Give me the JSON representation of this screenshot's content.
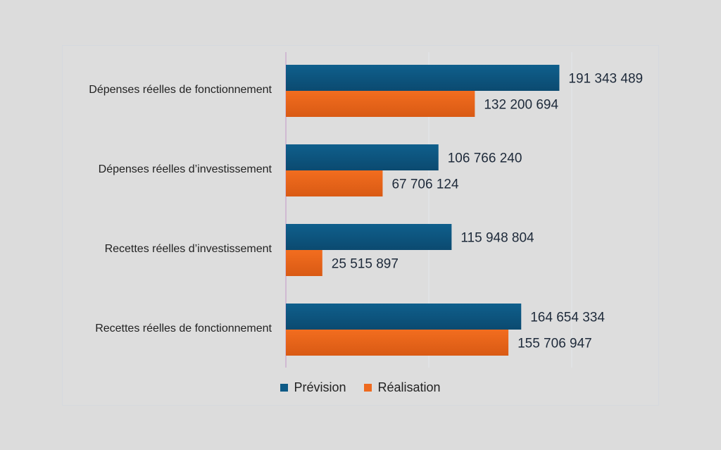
{
  "chart_data": {
    "type": "bar",
    "orientation": "horizontal",
    "categories": [
      "Dépenses réelles de fonctionnement",
      "Dépenses réelles d’investissement",
      "Recettes réelles d’investissement",
      "Recettes réelles de fonctionnement"
    ],
    "series": [
      {
        "name": "Prévision",
        "color": "#0e5a86",
        "values": [
          191343489,
          106766240,
          115948804,
          164654334
        ],
        "labels": [
          "191 343 489",
          "106 766 240",
          "115 948 804",
          "164 654 334"
        ]
      },
      {
        "name": "Réalisation",
        "color": "#ee6a1f",
        "values": [
          132200694,
          67706124,
          25515897,
          155706947
        ],
        "labels": [
          "132 200 694",
          "67 706 124",
          "25 515 897",
          "155 706 947"
        ]
      }
    ],
    "xlim": [
      0,
      200000000
    ],
    "grid": true,
    "legend_position": "bottom"
  }
}
